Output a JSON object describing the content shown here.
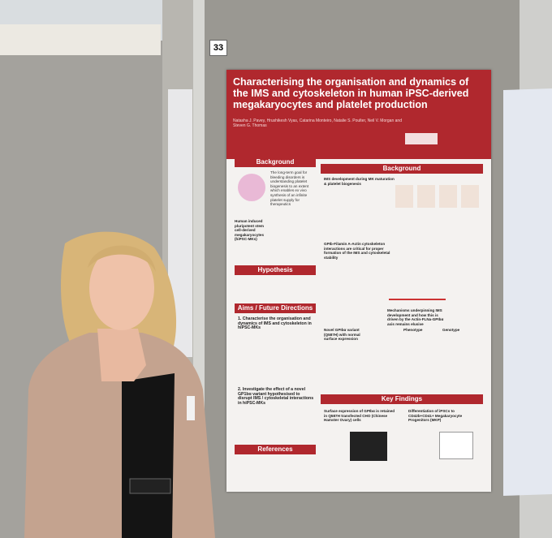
{
  "board_number": "33",
  "poster": {
    "title": "Characterising the organisation and dynamics of the IMS and cytoskeleton in human iPSC-derived megakaryocytes and platelet production",
    "authors": "Natasha J. Pavey, Hrushikesh Vyas, Catarina Monteiro, Natalie S. Poulter, Neil V. Morgan and Steven G. Thomas",
    "left_column": {
      "background": {
        "heading": "Background",
        "text": "The long-term goal for bleeding disorders is understanding platelet biogenesis to an extent which enables ex vivo synthesis of an infinite platelet supply for therapeutics",
        "caption": "Human induced pluripotent stem cell-derived megakaryocytes (hiPSC-MKs)"
      },
      "hypothesis": {
        "heading": "Hypothesis"
      },
      "aims": {
        "heading": "Aims / Future Directions",
        "items": [
          "1. Characterise the organisation and dynamics of IMS and cytoskeleton in hiPSC-MKs",
          "2. Investigate the effect of a novel GP1bα variant hypothesised to disrupt IMS / cytoskeletal interactions in hiPSC-MKs"
        ]
      },
      "references": {
        "heading": "References"
      }
    },
    "right_column": {
      "background": {
        "heading": "Background",
        "subheading": "IMS development during MK maturation & platelet biogenesis",
        "interactions": "GPIb-Filamin A-Actin cytoskeleton interactions are critical for proper formation of the IMS and cytoskeletal stability",
        "variant": "Novel GPIbα variant (Q587H) with normal surface expression",
        "mechanisms": "Mechanisms underpinning IMS development and how this is driven by the Actin-FLNa-GPIbα axis remains elusive",
        "phenotype": "Phenotype",
        "genotype": "Genotype"
      },
      "key_findings": {
        "heading": "Key Findings",
        "finding_1": "Surface expression of GPIbα is retained in Q587H transfected CHO (Chinese Hamster Ovary) cells",
        "finding_2": "Differentiation of iPSCs to CD42b+CD41+ Megakaryocyte Progenitors (MKP)"
      }
    }
  }
}
